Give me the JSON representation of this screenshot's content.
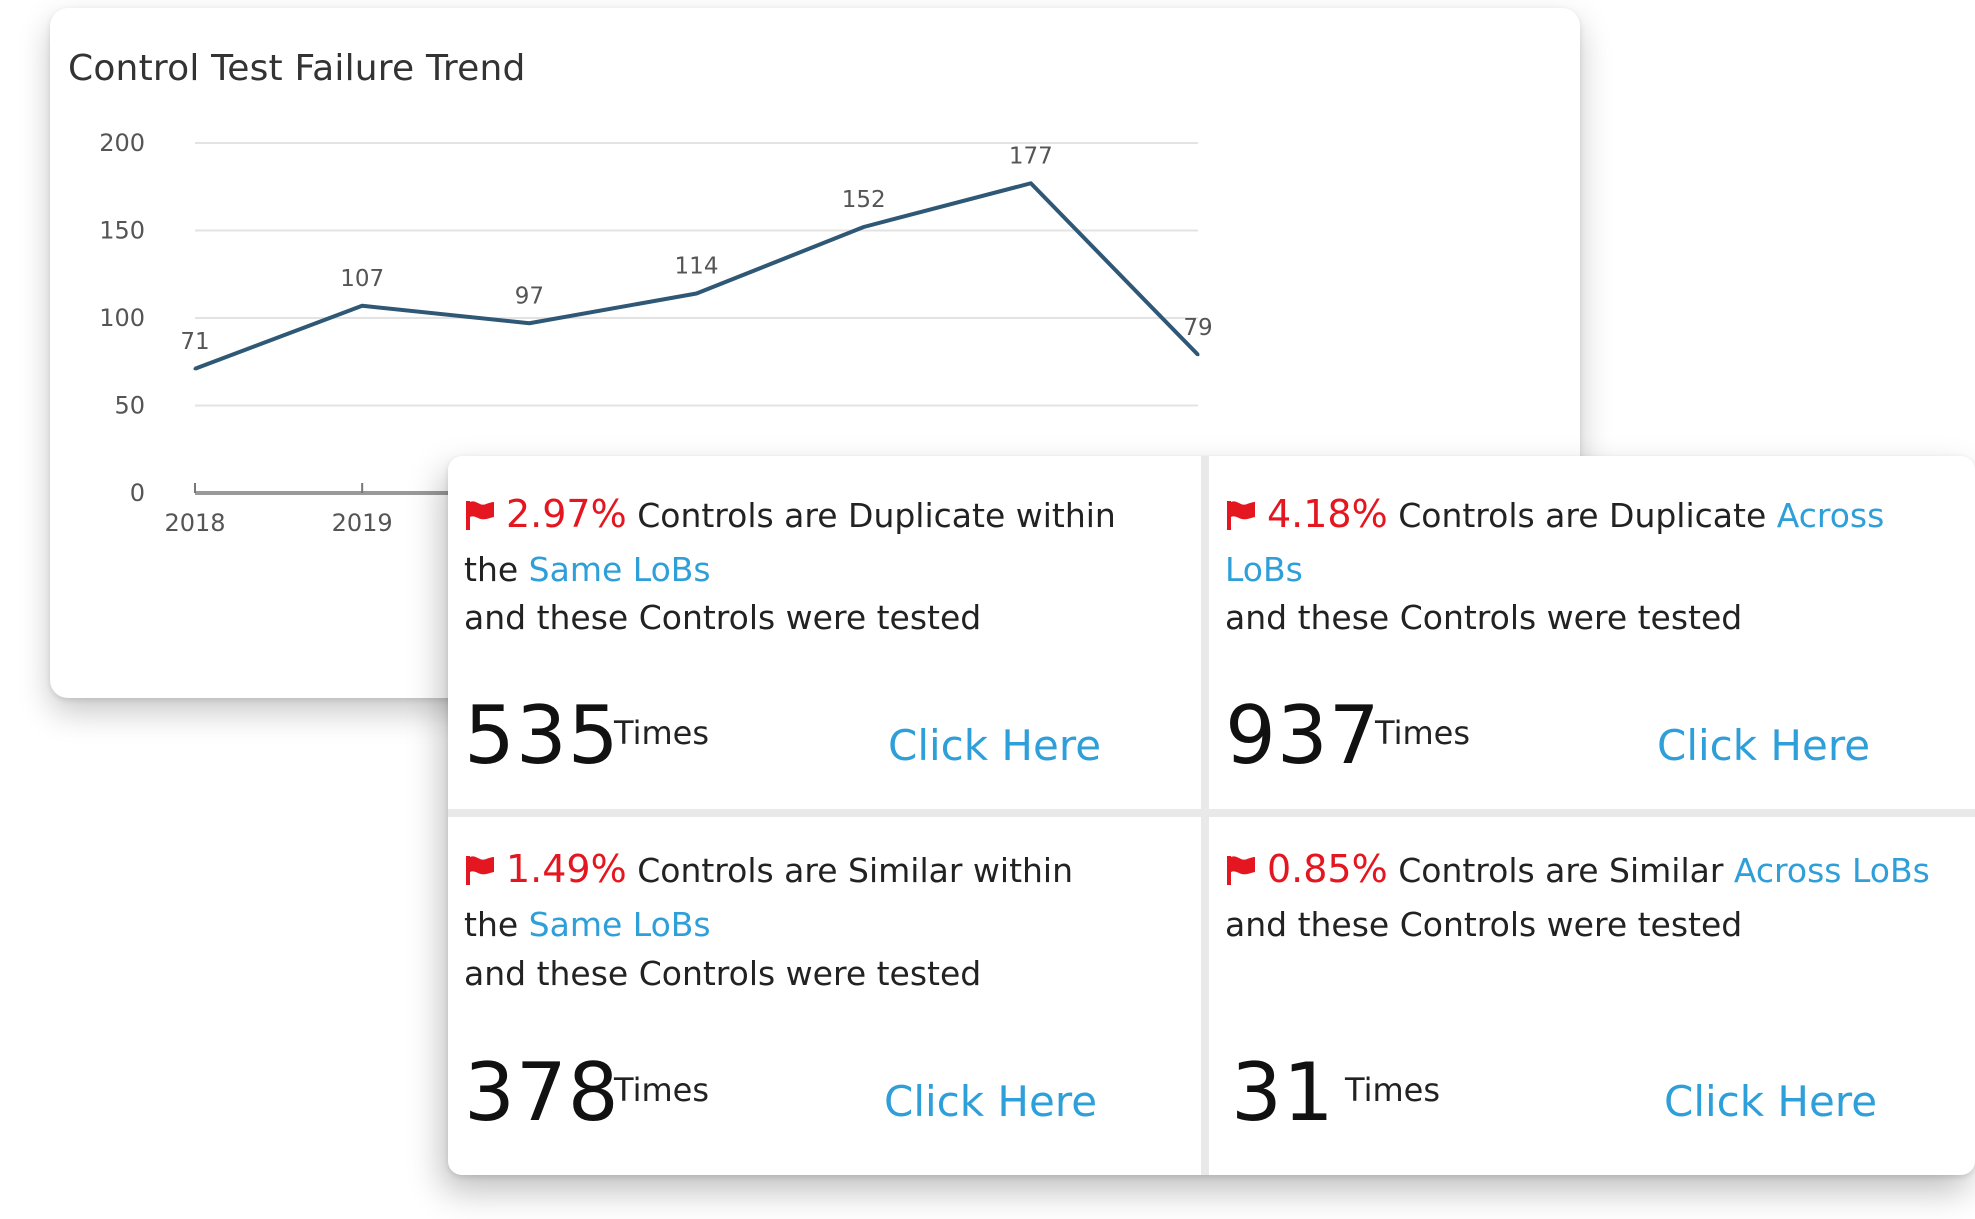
{
  "chart_title": "Control Test Failure Trend",
  "chart_data": {
    "type": "line",
    "title": "Control Test Failure Trend",
    "x": [
      "2018",
      "2019",
      "",
      "",
      "",
      "",
      ""
    ],
    "values": [
      71,
      107,
      97,
      114,
      152,
      177,
      79
    ],
    "data_labels": [
      "71",
      "107",
      "97",
      "114",
      "152",
      "177",
      "79"
    ],
    "yticks": [
      "0",
      "50",
      "100",
      "150",
      "200"
    ],
    "ylim": [
      0,
      200
    ],
    "grid": true,
    "line_color": "#2f5876"
  },
  "tiles": [
    {
      "pct": "2.97%",
      "line1_text": " Controls are Duplicate within",
      "line1_link": "",
      "line2_prefix": "the ",
      "line2_link": "Same LoBs",
      "line3": "and these Controls were tested",
      "count": "535",
      "times": "Times",
      "click": "Click Here"
    },
    {
      "pct": "4.18%",
      "line1_text": " Controls are Duplicate ",
      "line1_link": "Across",
      "line2_prefix": "",
      "line2_link": "LoBs",
      "line3": "and these Controls were tested",
      "count": "937",
      "times": "Times",
      "click": "Click Here"
    },
    {
      "pct": "1.49%",
      "line1_text": " Controls are Similar within",
      "line1_link": "",
      "line2_prefix": "the ",
      "line2_link": "Same LoBs",
      "line3": "and these Controls were tested",
      "count": "378",
      "times": "Times",
      "click": "Click Here"
    },
    {
      "pct": "0.85%",
      "line1_text": " Controls are Similar ",
      "line1_link": "Across LoBs",
      "line2_prefix": "and these Controls were tested",
      "line2_link": "",
      "line3": "",
      "count": "31",
      "times": "Times",
      "click": "Click Here"
    }
  ],
  "colors": {
    "accent_red": "#e4161f",
    "link_blue": "#2e9fd9"
  },
  "icons": {
    "flag": "flag-icon"
  }
}
